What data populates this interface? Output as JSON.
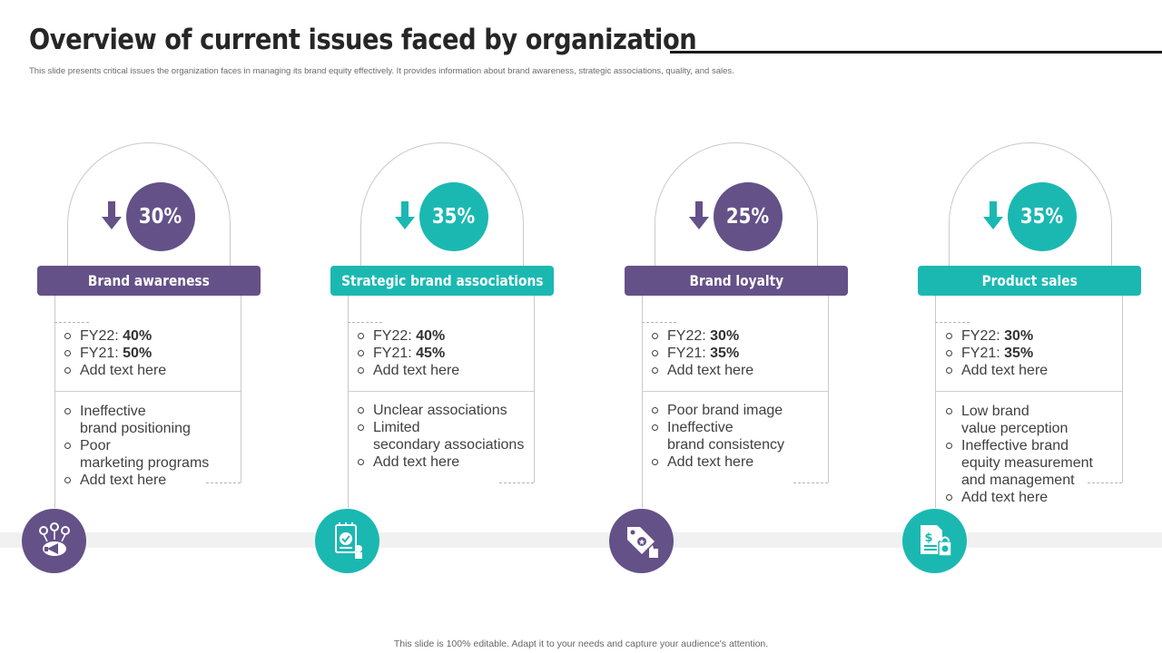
{
  "header": {
    "title": "Overview of current issues faced by organization",
    "subtitle": "This slide presents critical issues the organization faces in managing its brand equity effectively. It provides information about brand awareness, strategic associations, quality, and sales."
  },
  "colors": {
    "purple": "#645188",
    "teal": "#1bb8b2"
  },
  "cards": [
    {
      "theme": "purple",
      "percent": "30%",
      "label": "Brand awareness",
      "icon": "brand-awareness-icon",
      "stats": [
        {
          "label": "FY22:",
          "value": "40%"
        },
        {
          "label": "FY21:",
          "value": "50%"
        },
        {
          "label": "Add text here",
          "value": ""
        }
      ],
      "issues": [
        {
          "line1": "Ineffective",
          "line2": "brand positioning"
        },
        {
          "line1": "Poor",
          "line2": "marketing programs"
        },
        {
          "line1": "Add text here",
          "line2": ""
        }
      ]
    },
    {
      "theme": "teal",
      "percent": "35%",
      "label": "Strategic brand associations",
      "icon": "strategy-badge-icon",
      "stats": [
        {
          "label": "FY22:",
          "value": "40%"
        },
        {
          "label": "FY21:",
          "value": "45%"
        },
        {
          "label": "Add text here",
          "value": ""
        }
      ],
      "issues": [
        {
          "line1": "Unclear associations",
          "line2": ""
        },
        {
          "line1": "Limited",
          "line2": "secondary associations"
        },
        {
          "line1": "Add text here",
          "line2": ""
        }
      ]
    },
    {
      "theme": "purple",
      "percent": "25%",
      "label": "Brand loyalty",
      "icon": "loyalty-tag-icon",
      "stats": [
        {
          "label": "FY22:",
          "value": "30%"
        },
        {
          "label": "FY21:",
          "value": "35%"
        },
        {
          "label": "Add text here",
          "value": ""
        }
      ],
      "issues": [
        {
          "line1": "Poor brand image",
          "line2": ""
        },
        {
          "line1": "Ineffective",
          "line2": "brand consistency"
        },
        {
          "line1": "Add text here",
          "line2": ""
        }
      ]
    },
    {
      "theme": "teal",
      "percent": "35%",
      "label": "Product sales",
      "icon": "sales-invoice-icon",
      "stats": [
        {
          "label": "FY22:",
          "value": "30%"
        },
        {
          "label": "FY21:",
          "value": "35%"
        },
        {
          "label": "Add text here",
          "value": ""
        }
      ],
      "issues": [
        {
          "line1": "Low brand",
          "line2": "value perception"
        },
        {
          "line1": "Ineffective  brand",
          "line2": "equity measurement",
          "line3": "and management"
        },
        {
          "line1": "Add text here",
          "line2": ""
        }
      ]
    }
  ],
  "footer": "This slide is 100% editable. Adapt it to your needs and capture your audience's attention."
}
